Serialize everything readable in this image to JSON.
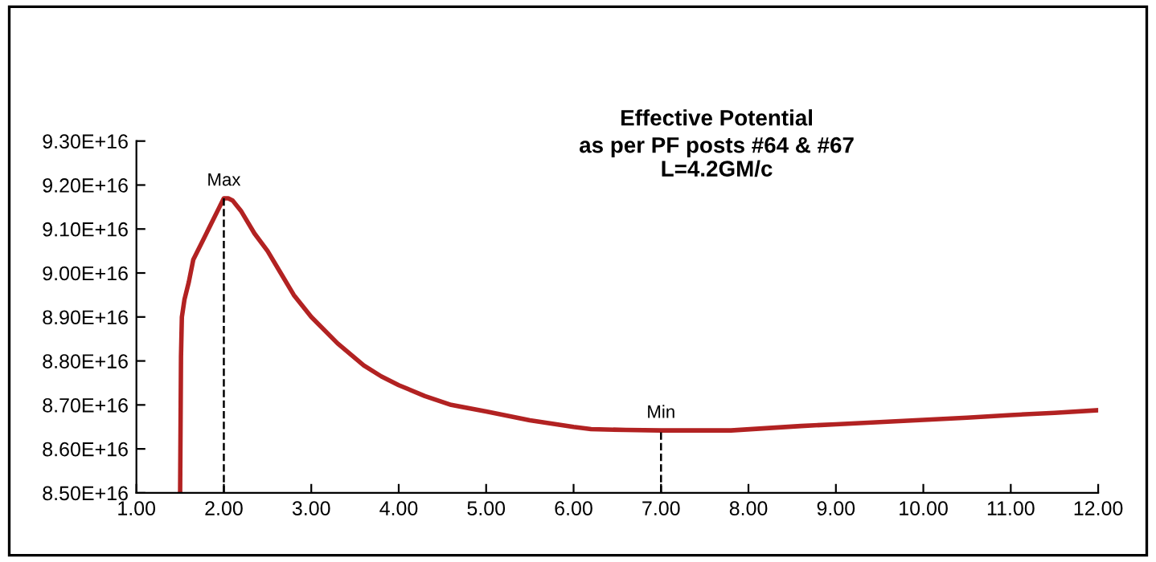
{
  "chart_data": {
    "type": "line",
    "title": "Effective Potential\nas per PF posts #64 & #67",
    "subtitle": "L=4.2GM/c",
    "series": [
      {
        "color": "#b22222",
        "x": [
          1.5,
          1.51,
          1.52,
          1.55,
          1.6,
          1.65,
          1.75,
          1.85,
          1.95,
          2.0,
          2.05,
          2.1,
          2.2,
          2.35,
          2.5,
          2.65,
          2.8,
          3.0,
          3.3,
          3.6,
          3.8,
          4.0,
          4.3,
          4.6,
          5.0,
          5.5,
          6.0,
          6.2,
          6.6,
          7.0,
          7.4,
          7.8,
          8.2,
          8.6,
          9.0,
          9.5,
          10.0,
          10.5,
          11.0,
          11.5,
          12.0
        ],
        "values": [
          8.5e+16,
          8.81e+16,
          8.9e+16,
          8.94e+16,
          8.98e+16,
          9.03e+16,
          9.07e+16,
          9.11e+16,
          9.15e+16,
          9.17e+16,
          9.17e+16,
          9.165e+16,
          9.14e+16,
          9.09e+16,
          9.05e+16,
          9e+16,
          8.95e+16,
          8.9e+16,
          8.84e+16,
          8.79e+16,
          8.765e+16,
          8.745e+16,
          8.72e+16,
          8.7e+16,
          8.685e+16,
          8.665e+16,
          8.65e+16,
          8.645e+16,
          8.643e+16,
          8.642e+16,
          8.642e+16,
          8.642e+16,
          8.647e+16,
          8.652e+16,
          8.656e+16,
          8.661e+16,
          8.666e+16,
          8.671e+16,
          8.677e+16,
          8.682e+16,
          8.688e+16
        ]
      }
    ],
    "xlim": [
      1.0,
      12.0
    ],
    "xticks": [
      {
        "value": 1,
        "label": "1.00"
      },
      {
        "value": 2,
        "label": "2.00"
      },
      {
        "value": 3,
        "label": "3.00"
      },
      {
        "value": 4,
        "label": "4.00"
      },
      {
        "value": 5,
        "label": "5.00"
      },
      {
        "value": 6,
        "label": "6.00"
      },
      {
        "value": 7,
        "label": "7.00"
      },
      {
        "value": 8,
        "label": "8.00"
      },
      {
        "value": 9,
        "label": "9.00"
      },
      {
        "value": 10,
        "label": "10.00"
      },
      {
        "value": 11,
        "label": "11.00"
      },
      {
        "value": 12,
        "label": "12.00"
      }
    ],
    "ylim": [
      8.5e+16,
      9.3e+16
    ],
    "yticks": [
      {
        "value": 8.5e+16,
        "label": "8.50E+16"
      },
      {
        "value": 8.6e+16,
        "label": "8.60E+16"
      },
      {
        "value": 8.7e+16,
        "label": "8.70E+16"
      },
      {
        "value": 8.8e+16,
        "label": "8.80E+16"
      },
      {
        "value": 8.9e+16,
        "label": "8.90E+16"
      },
      {
        "value": 9e+16,
        "label": "9.00E+16"
      },
      {
        "value": 9.1e+16,
        "label": "9.10E+16"
      },
      {
        "value": 9.2e+16,
        "label": "9.20E+16"
      },
      {
        "value": 9.3e+16,
        "label": "9.30E+16"
      }
    ],
    "ref_lines": [
      {
        "axis": "x",
        "value": 2,
        "label": "Max",
        "line_style": "dashed",
        "color": "#000000"
      },
      {
        "axis": "x",
        "value": 7,
        "label": "Min",
        "line_style": "dashed",
        "color": "#000000"
      }
    ],
    "grid": false,
    "legend": false,
    "marker": "none",
    "line_style": "solid"
  }
}
